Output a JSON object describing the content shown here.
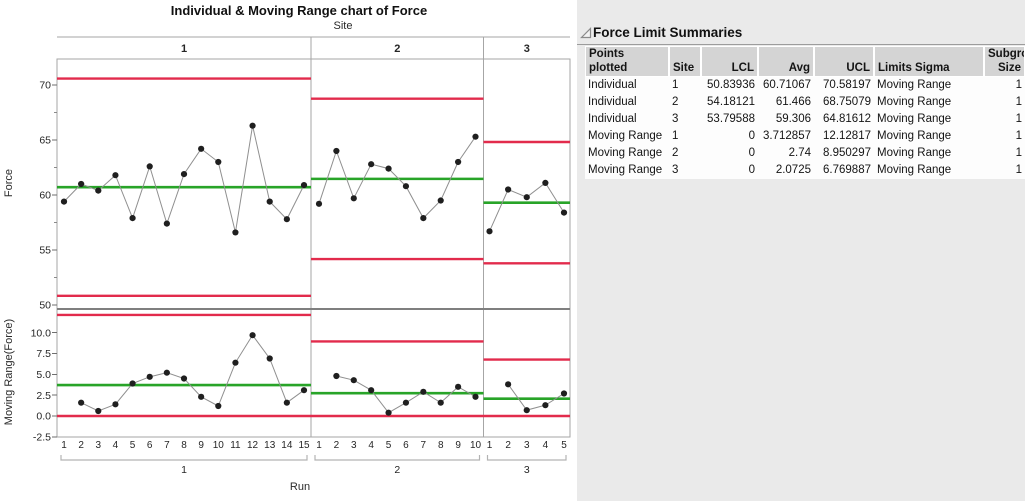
{
  "chart": {
    "title": "Individual & Moving Range chart of Force",
    "group_axis_label": "Site",
    "x_axis_label": "Run"
  },
  "chart_data": {
    "type": "line",
    "subtype": "individual-and-moving-range-control-chart",
    "group_variable": "Site",
    "x_variable": "Run",
    "legend_position": "none",
    "grid": false,
    "groups": [
      {
        "site": "1",
        "runs": [
          1,
          2,
          3,
          4,
          5,
          6,
          7,
          8,
          9,
          10,
          11,
          12,
          13,
          14,
          15
        ],
        "individuals": [
          59.4,
          61.0,
          60.4,
          61.8,
          57.9,
          62.6,
          57.4,
          61.9,
          64.2,
          63.0,
          56.6,
          66.3,
          59.4,
          57.8,
          60.9
        ],
        "moving_ranges": [
          1.6,
          0.6,
          1.4,
          3.9,
          4.7,
          5.2,
          4.5,
          2.3,
          1.2,
          6.4,
          9.7,
          6.9,
          1.6,
          3.1
        ],
        "ind_limits": {
          "lcl": 50.83936,
          "avg": 60.71067,
          "ucl": 70.58197
        },
        "mr_limits": {
          "lcl": 0,
          "avg": 3.712857,
          "ucl": 12.12817
        }
      },
      {
        "site": "2",
        "runs": [
          1,
          2,
          3,
          4,
          5,
          6,
          7,
          8,
          9,
          10
        ],
        "individuals": [
          59.2,
          64.0,
          59.7,
          62.8,
          62.4,
          60.8,
          57.9,
          59.5,
          63.0,
          65.3
        ],
        "moving_ranges": [
          4.8,
          4.3,
          3.1,
          0.4,
          1.6,
          2.9,
          1.6,
          3.5,
          2.3
        ],
        "ind_limits": {
          "lcl": 54.18121,
          "avg": 61.466,
          "ucl": 68.75079
        },
        "mr_limits": {
          "lcl": 0,
          "avg": 2.74,
          "ucl": 8.950297
        }
      },
      {
        "site": "3",
        "runs": [
          1,
          2,
          3,
          4,
          5
        ],
        "individuals": [
          56.7,
          60.5,
          59.8,
          61.1,
          58.4
        ],
        "moving_ranges": [
          3.8,
          0.7,
          1.3,
          2.7
        ],
        "ind_limits": {
          "lcl": 53.79588,
          "avg": 59.306,
          "ucl": 64.81612
        },
        "mr_limits": {
          "lcl": 0,
          "avg": 2.0725,
          "ucl": 6.769887
        }
      }
    ],
    "individual_axis": {
      "label": "Force",
      "tick_values": [
        50,
        55,
        60,
        65,
        70
      ],
      "tick_labels": [
        "50",
        "55",
        "60",
        "65",
        "70"
      ],
      "minor_tick_values": [
        52.5,
        57.5,
        62.5,
        67.5
      ],
      "ylim": [
        49.64,
        72.36
      ]
    },
    "mr_axis": {
      "label": "Moving Range(Force)",
      "tick_values": [
        -2.5,
        0,
        2.5,
        5,
        7.5,
        10
      ],
      "tick_labels": [
        "-2.5",
        "0.0",
        "2.5",
        "5.0",
        "7.5",
        "10.0"
      ],
      "ylim": [
        -2.52,
        12.84
      ]
    }
  },
  "table": {
    "title": "Force Limit Summaries",
    "columns": [
      {
        "label": "Points\nplotted",
        "align": "left"
      },
      {
        "label": "Site",
        "align": "left"
      },
      {
        "label": "LCL",
        "align": "right"
      },
      {
        "label": "Avg",
        "align": "right"
      },
      {
        "label": "UCL",
        "align": "right"
      },
      {
        "label": "Limits Sigma",
        "align": "left"
      },
      {
        "label": "Subgroup\nSize",
        "align": "right"
      }
    ],
    "rows": [
      [
        "Individual",
        "1",
        "50.83936",
        "60.71067",
        "70.58197",
        "Moving Range",
        "1"
      ],
      [
        "Individual",
        "2",
        "54.18121",
        "61.466",
        "68.75079",
        "Moving Range",
        "1"
      ],
      [
        "Individual",
        "3",
        "53.79588",
        "59.306",
        "64.81612",
        "Moving Range",
        "1"
      ],
      [
        "Moving Range",
        "1",
        "0",
        "3.712857",
        "12.12817",
        "Moving Range",
        "1"
      ],
      [
        "Moving Range",
        "2",
        "0",
        "2.74",
        "8.950297",
        "Moving Range",
        "1"
      ],
      [
        "Moving Range",
        "3",
        "0",
        "2.0725",
        "6.769887",
        "Moving Range",
        "1"
      ]
    ]
  },
  "icons": {
    "disclosure_open": "open-triangle"
  },
  "colors": {
    "limit_red": "#e22b4c",
    "center_green": "#28a428",
    "point_black": "#1f1f1f",
    "connector_gray": "#8f8f8f",
    "frame_gray": "#a6a6a6",
    "panel_divider_gray": "#7f7f7f",
    "bracket_gray": "#b3b3b3",
    "right_panel_bg": "#eaeaea",
    "table_header_bg": "#d4d4d4",
    "table_body_bg": "#fdfdfd"
  }
}
